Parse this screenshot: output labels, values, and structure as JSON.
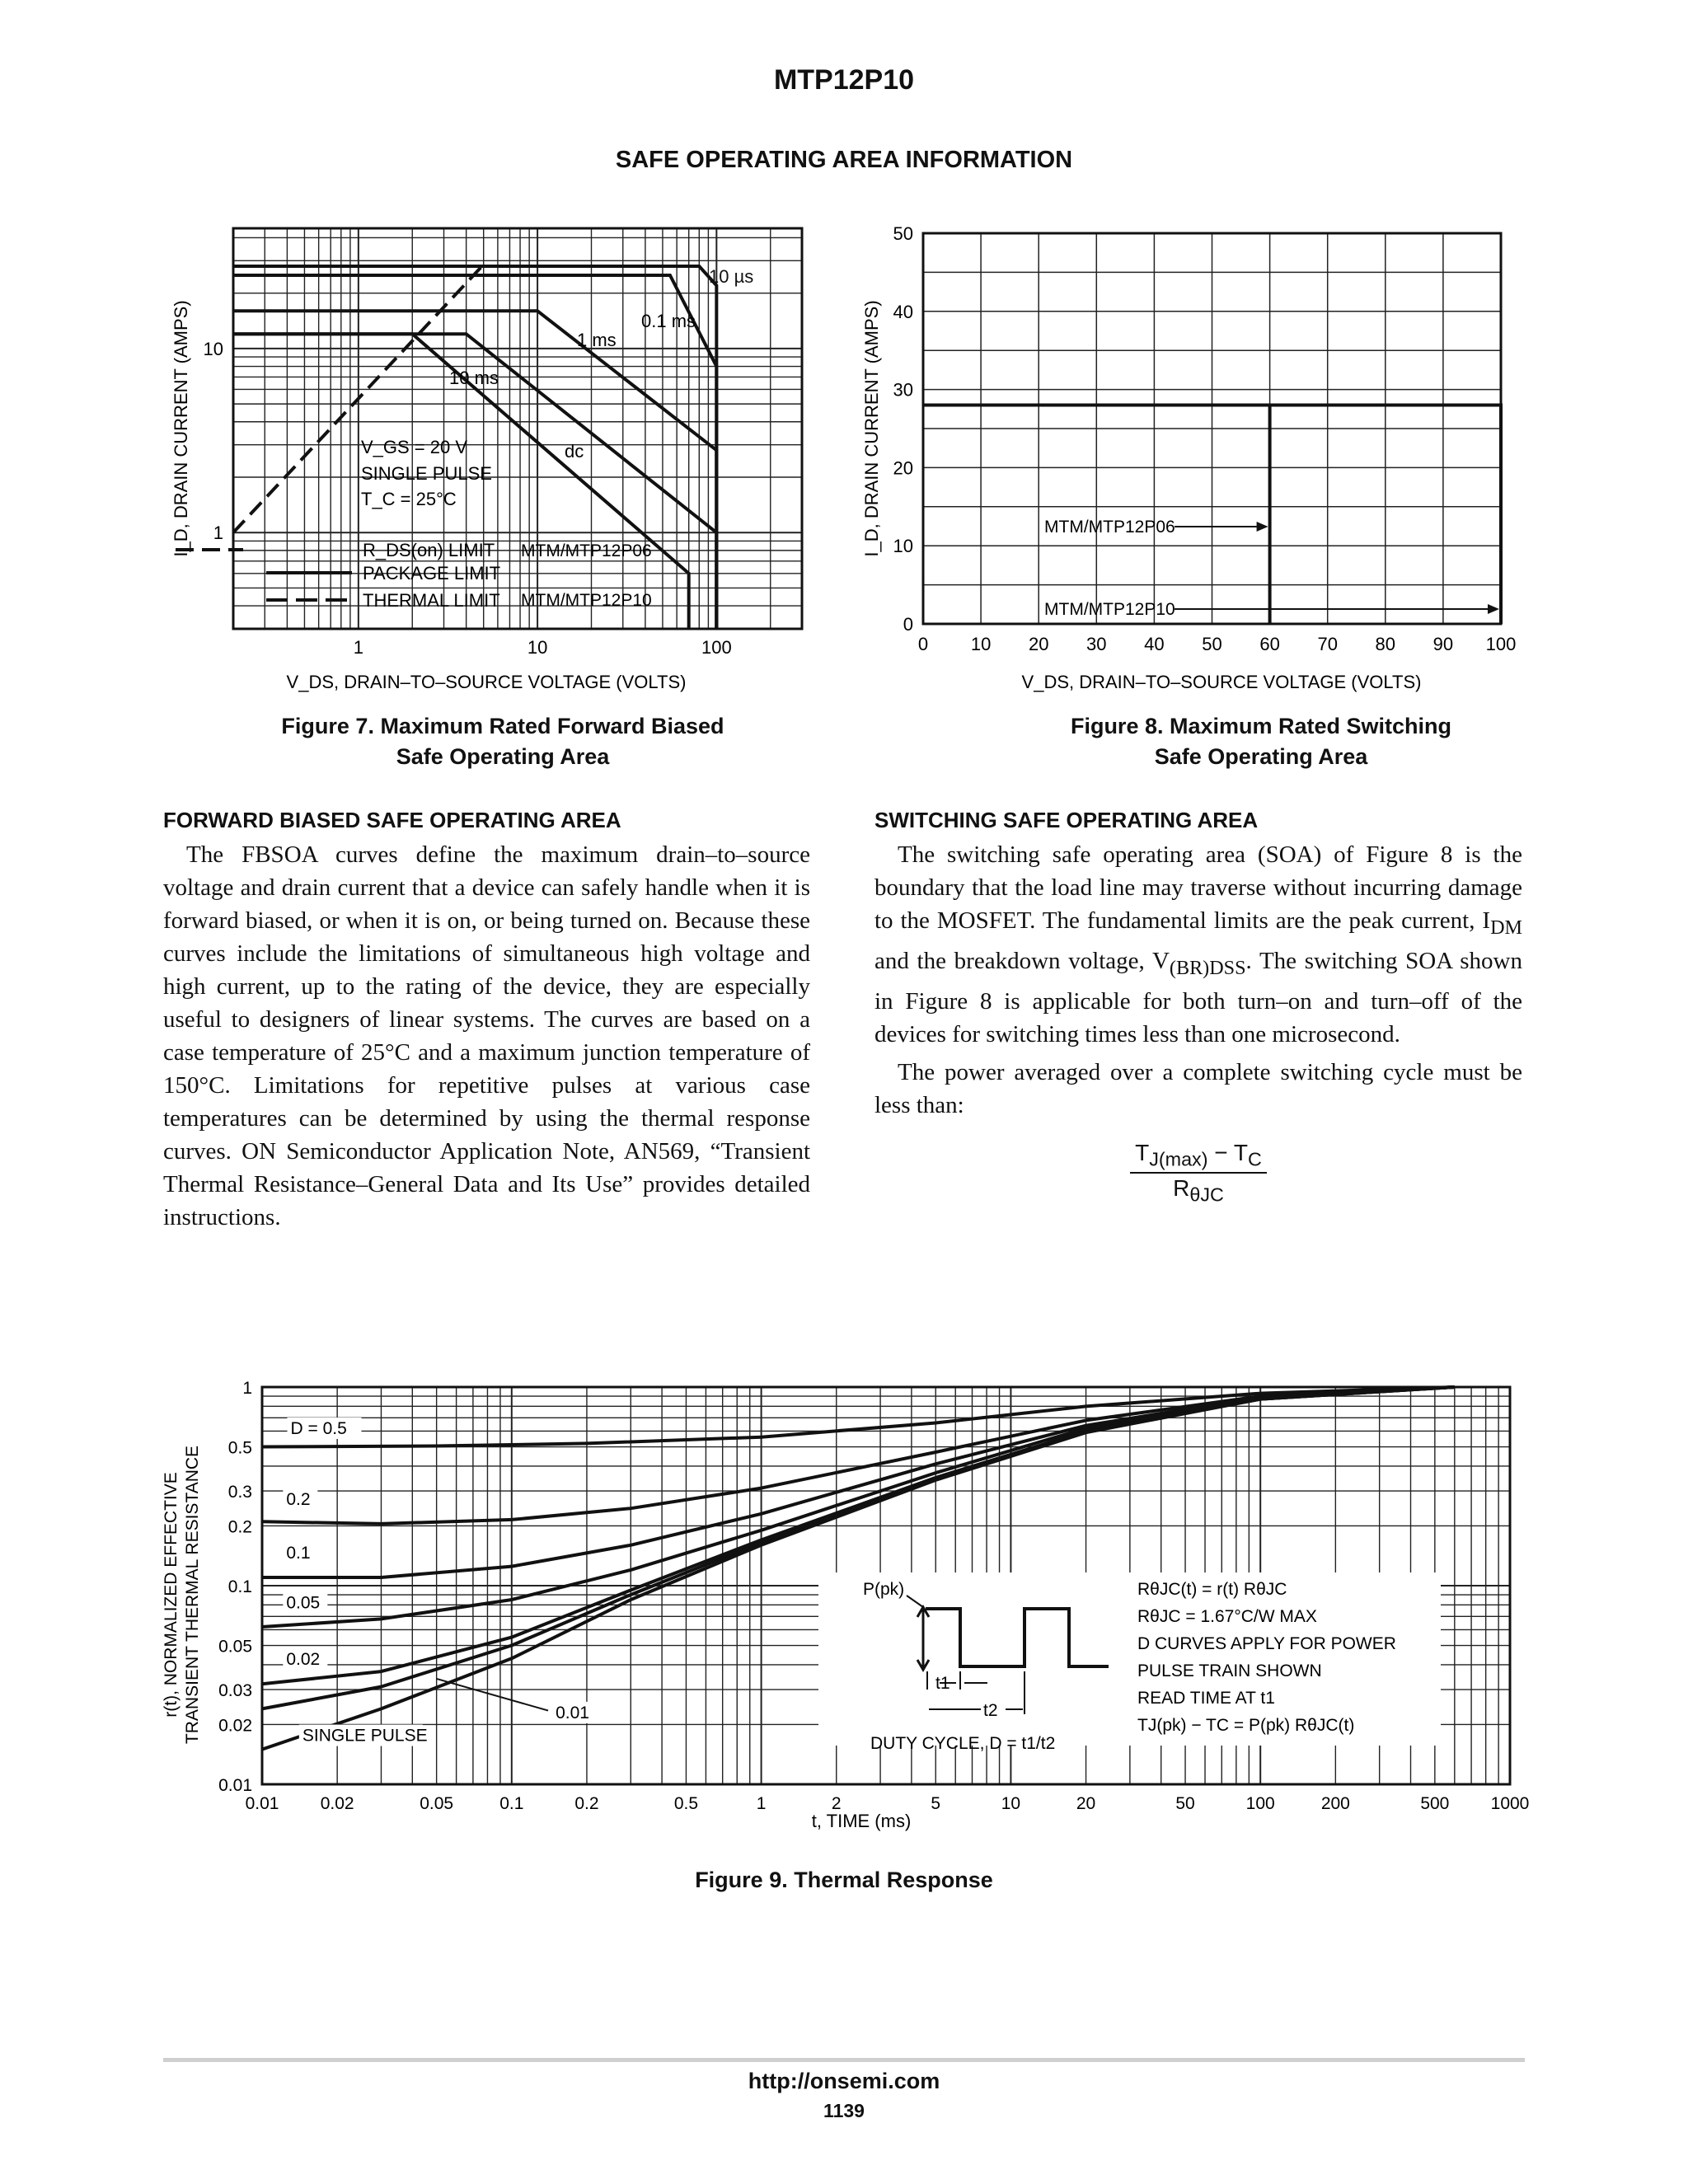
{
  "header": {
    "title": "MTP12P10",
    "section": "SAFE OPERATING AREA INFORMATION"
  },
  "figures": {
    "fig7_caption_line1": "Figure 7. Maximum Rated Forward Biased",
    "fig7_caption_line2": "Safe Operating Area",
    "fig8_caption_line1": "Figure 8. Maximum Rated Switching",
    "fig8_caption_line2": "Safe Operating Area",
    "fig9_caption": "Figure 9. Thermal Response"
  },
  "fbsoa": {
    "heading": "FORWARD BIASED SAFE OPERATING AREA",
    "text": "The FBSOA curves define the maximum drain–to–source voltage and drain current that a device can safely handle when it is forward biased, or when it is on, or being turned on. Because these curves include the limitations of simultaneous high voltage and high current, up to the rating of the device, they are especially useful to designers of linear systems. The curves are based on a case temperature of 25°C and a maximum junction temperature of 150°C. Limitations for repetitive pulses at various case temperatures can be determined by using the thermal response curves. ON Semiconductor Application Note, AN569, “Transient Thermal Resistance–General Data and Its Use” provides detailed instructions."
  },
  "ssoa": {
    "heading": "SWITCHING SAFE OPERATING AREA",
    "p1_a": "The switching safe operating area (SOA) of Figure 8 is the boundary that the load line may traverse without incurring damage to the MOSFET. The fundamental limits are the peak current, I",
    "p1_sub1": "DM",
    "p1_b": " and the breakdown voltage, V",
    "p1_sub2": "(BR)DSS",
    "p1_c": ". The switching SOA shown in Figure 8 is applicable for both turn–on and turn–off of the devices for switching times less than one microsecond.",
    "p2": "The power averaged over a complete switching cycle must be less than:",
    "formula_num": "T",
    "formula_num_sub1": "J(max)",
    "formula_num_mid": " − T",
    "formula_num_sub2": "C",
    "formula_den": "R",
    "formula_den_sub": "θJC"
  },
  "footer": {
    "url": "http://onsemi.com",
    "page": "1139"
  },
  "chart_data": [
    {
      "id": "fig7",
      "type": "line",
      "x_scale": "log",
      "y_scale": "log",
      "xlim": [
        0.2,
        300
      ],
      "ylim": [
        0.3,
        45
      ],
      "xlabel": "V_DS, DRAIN–TO–SOURCE VOLTAGE (VOLTS)",
      "ylabel": "I_D, DRAIN CURRENT (AMPS)",
      "xticks": [
        "1",
        "10",
        "100"
      ],
      "yticks": [
        "1",
        "10"
      ],
      "grid": true,
      "series": [
        {
          "name": "R_DS(on) LIMIT",
          "style": "dashed",
          "x": [
            0.2,
            4.9
          ],
          "y": [
            1,
            28
          ]
        },
        {
          "name": "10 µs",
          "x": [
            0.2,
            80,
            100,
            100
          ],
          "y": [
            28,
            28,
            22,
            0.3
          ]
        },
        {
          "name": "0.1 ms",
          "x": [
            0.2,
            55,
            100,
            100
          ],
          "y": [
            25,
            25,
            8,
            0.3
          ]
        },
        {
          "name": "1 ms",
          "x": [
            0.2,
            10,
            100,
            100
          ],
          "y": [
            16,
            16,
            2.8,
            0.3
          ]
        },
        {
          "name": "10 ms",
          "x": [
            0.2,
            4,
            100,
            100
          ],
          "y": [
            12,
            12,
            1.0,
            0.3
          ]
        },
        {
          "name": "dc",
          "x": [
            0.2,
            2,
            70,
            70
          ],
          "y": [
            12,
            12,
            0.6,
            0.3
          ]
        }
      ],
      "limit_labels": [
        "10 µs",
        "0.1 ms",
        "1 ms",
        "10 ms",
        "dc"
      ],
      "annotations": [
        "V_GS = 20 V",
        "SINGLE PULSE",
        "T_C = 25°C"
      ],
      "legend": [
        "R_DS(on) LIMIT",
        "PACKAGE LIMIT",
        "THERMAL LIMIT"
      ],
      "device_labels": [
        "MTM/MTP12P06",
        "MTM/MTP12P10"
      ],
      "legend_placement": "bottom-left"
    },
    {
      "id": "fig8",
      "type": "line",
      "xlim": [
        0,
        100
      ],
      "ylim": [
        0,
        50
      ],
      "xlabel": "V_DS, DRAIN–TO–SOURCE VOLTAGE (VOLTS)",
      "ylabel": "I_D, DRAIN CURRENT (AMPS)",
      "xticks": [
        "0",
        "10",
        "20",
        "30",
        "40",
        "50",
        "60",
        "70",
        "80",
        "90",
        "100"
      ],
      "yticks": [
        "0",
        "10",
        "20",
        "30",
        "40",
        "50"
      ],
      "grid": true,
      "series": [
        {
          "name": "MTM/MTP12P06",
          "x": [
            0,
            60,
            60
          ],
          "y": [
            28,
            28,
            0
          ]
        },
        {
          "name": "MTM/MTP12P10",
          "x": [
            0,
            100,
            100
          ],
          "y": [
            28,
            28,
            0
          ]
        }
      ]
    },
    {
      "id": "fig9",
      "type": "line",
      "x_scale": "log",
      "y_scale": "log",
      "xlim": [
        0.01,
        1000
      ],
      "ylim": [
        0.01,
        1
      ],
      "xlabel": "t, TIME (ms)",
      "ylabel_line1": "r(t), NORMALIZED EFFECTIVE",
      "ylabel_line2": "TRANSIENT THERMAL RESISTANCE",
      "xticks": [
        "0.01",
        "0.02",
        "0.05",
        "0.1",
        "0.2",
        "0.5",
        "1",
        "2",
        "5",
        "10",
        "20",
        "50",
        "100",
        "200",
        "500",
        "1000"
      ],
      "yticks": [
        "0.01",
        "0.02",
        "0.03",
        "0.05",
        "0.1",
        "0.2",
        "0.3",
        "0.5",
        "1"
      ],
      "grid": true,
      "series": [
        {
          "name": "D = 0.5",
          "x": [
            0.01,
            0.05,
            0.2,
            1,
            5,
            20,
            100,
            600
          ],
          "y": [
            0.5,
            0.505,
            0.52,
            0.56,
            0.66,
            0.8,
            0.93,
            1.0
          ]
        },
        {
          "name": "0.2",
          "x": [
            0.01,
            0.03,
            0.1,
            0.3,
            1,
            5,
            20,
            100,
            600
          ],
          "y": [
            0.21,
            0.205,
            0.215,
            0.245,
            0.31,
            0.47,
            0.68,
            0.9,
            1.0
          ]
        },
        {
          "name": "0.1",
          "x": [
            0.01,
            0.03,
            0.1,
            0.3,
            1,
            5,
            20,
            100,
            600
          ],
          "y": [
            0.11,
            0.11,
            0.125,
            0.16,
            0.23,
            0.41,
            0.64,
            0.89,
            1.0
          ]
        },
        {
          "name": "0.05",
          "x": [
            0.01,
            0.03,
            0.1,
            0.3,
            1,
            5,
            20,
            100,
            600
          ],
          "y": [
            0.062,
            0.068,
            0.085,
            0.12,
            0.19,
            0.37,
            0.62,
            0.88,
            1.0
          ]
        },
        {
          "name": "0.02",
          "x": [
            0.01,
            0.03,
            0.1,
            0.3,
            1,
            5,
            20,
            100,
            600
          ],
          "y": [
            0.032,
            0.037,
            0.055,
            0.095,
            0.17,
            0.35,
            0.6,
            0.87,
            1.0
          ]
        },
        {
          "name": "0.01",
          "x": [
            0.01,
            0.03,
            0.1,
            0.3,
            1,
            5,
            20,
            100,
            600
          ],
          "y": [
            0.024,
            0.031,
            0.05,
            0.09,
            0.165,
            0.345,
            0.6,
            0.87,
            1.0
          ]
        },
        {
          "name": "SINGLE PULSE",
          "x": [
            0.01,
            0.03,
            0.1,
            0.3,
            1,
            5,
            20,
            100,
            600
          ],
          "y": [
            0.015,
            0.024,
            0.043,
            0.085,
            0.16,
            0.34,
            0.59,
            0.87,
            1.0
          ]
        }
      ],
      "inset_labels": {
        "ppk": "P(pk)",
        "t1": "t1",
        "t2": "t2",
        "duty": "DUTY CYCLE, D = t1/t2"
      },
      "notes": [
        "RθJC(t) = r(t) RθJC",
        "RθJC = 1.67°C/W MAX",
        "D CURVES APPLY FOR POWER",
        "PULSE TRAIN SHOWN",
        "READ TIME AT t1",
        "TJ(pk) − TC = P(pk) RθJC(t)"
      ]
    }
  ]
}
